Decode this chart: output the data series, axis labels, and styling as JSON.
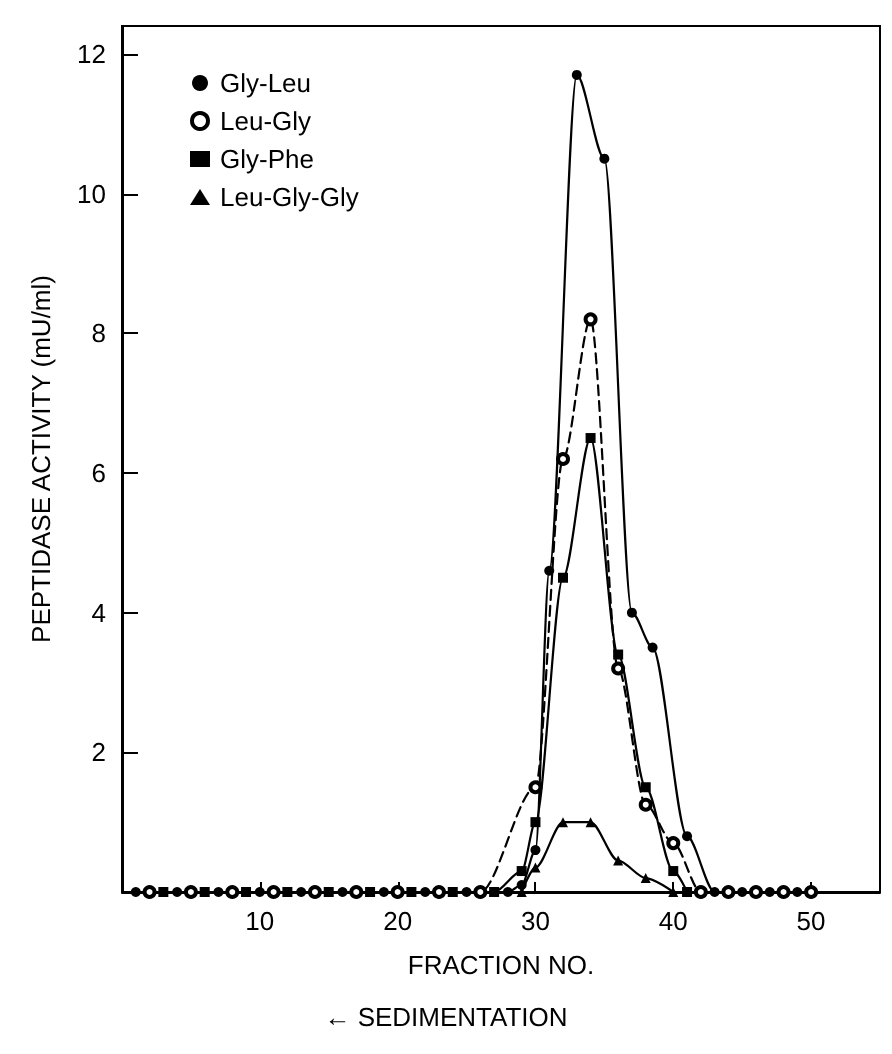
{
  "chart_data": {
    "type": "line",
    "xlabel": "FRACTION NO.",
    "ylabel": "PEPTIDASE ACTIVITY (mU/ml)",
    "annotations": [
      "← SEDIMENTATION"
    ],
    "xlim": [
      0,
      55
    ],
    "xticks": [
      10,
      20,
      30,
      40,
      50
    ],
    "ylim": [
      0,
      12.4
    ],
    "yticks": [
      2,
      4,
      6,
      8,
      10,
      12
    ],
    "grid": false,
    "legend": "top left",
    "series": [
      {
        "name": "Gly-Leu",
        "color": "#000000",
        "marker": "circle",
        "line_style": "solid",
        "x": [
          1,
          4,
          7,
          10,
          13,
          16,
          19,
          22,
          25,
          28,
          29,
          30,
          31,
          33,
          35,
          37,
          38.5,
          41,
          43,
          45,
          47,
          49
        ],
        "values": [
          0,
          0,
          0,
          0,
          0,
          0,
          0,
          0,
          0,
          0,
          0.1,
          0.6,
          4.6,
          11.7,
          10.5,
          4.0,
          3.5,
          0.8,
          0,
          0,
          0,
          0
        ]
      },
      {
        "name": "Leu-Gly",
        "color": "#000000",
        "marker": "open circle",
        "line_style": "dashed",
        "x": [
          2,
          5,
          8,
          11,
          14,
          17,
          20,
          23,
          26,
          30,
          32,
          34,
          36,
          38,
          40,
          42,
          44,
          46,
          48,
          50
        ],
        "values": [
          0,
          0,
          0,
          0,
          0,
          0,
          0,
          0,
          0,
          1.5,
          6.2,
          8.2,
          3.2,
          1.25,
          0.7,
          0,
          0,
          0,
          0,
          0
        ]
      },
      {
        "name": "Gly-Phe",
        "color": "#000000",
        "marker": "square",
        "line_style": "solid",
        "x": [
          3,
          6,
          9,
          12,
          15,
          18,
          21,
          24,
          27,
          29,
          30,
          32,
          34,
          36,
          38,
          40,
          41
        ],
        "values": [
          0,
          0,
          0,
          0,
          0,
          0,
          0,
          0,
          0,
          0.3,
          1.0,
          4.5,
          6.5,
          3.4,
          1.5,
          0.3,
          0
        ]
      },
      {
        "name": "Leu-Gly-Gly",
        "color": "#000000",
        "marker": "triangle",
        "line_style": "solid",
        "x": [
          29,
          30,
          32,
          34,
          36,
          38,
          40
        ],
        "values": [
          0,
          0.35,
          1.0,
          1.0,
          0.45,
          0.2,
          0
        ]
      }
    ]
  }
}
